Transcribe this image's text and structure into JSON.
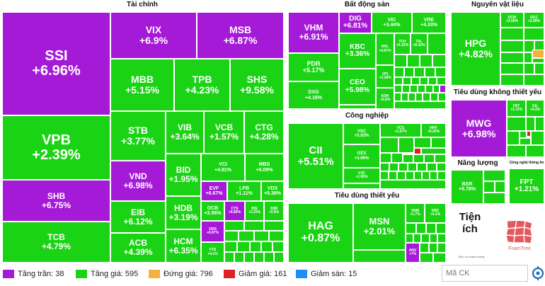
{
  "sectors": {
    "tai_chinh": "Tài chính",
    "bds": "Bất động sản",
    "nvl": "Nguyên vật liệu",
    "tdkty": "Tiêu dùng không thiết yếu",
    "cong_nghiep": "Công nghiệp",
    "nang_luong": "Năng lượng",
    "cntt": "Công nghệ thông tin",
    "tdty": "Tiêu dùng thiết yếu"
  },
  "tiles": {
    "ssi": {
      "code": "SSI",
      "pct": "+6.96%"
    },
    "vpb": {
      "code": "VPB",
      "pct": "+2.39%"
    },
    "shb": {
      "code": "SHB",
      "pct": "+6.75%"
    },
    "tcb": {
      "code": "TCB",
      "pct": "+4.79%"
    },
    "vix": {
      "code": "VIX",
      "pct": "+6.9%"
    },
    "msb": {
      "code": "MSB",
      "pct": "+6.87%"
    },
    "mbb": {
      "code": "MBB",
      "pct": "+5.15%"
    },
    "tpb": {
      "code": "TPB",
      "pct": "+4.23%"
    },
    "shs": {
      "code": "SHS",
      "pct": "+9.58%"
    },
    "stb": {
      "code": "STB",
      "pct": "+3.77%"
    },
    "vib": {
      "code": "VIB",
      "pct": "+3.64%"
    },
    "vcb": {
      "code": "VCB",
      "pct": "+1.57%"
    },
    "ctg": {
      "code": "CTG",
      "pct": "+4.28%"
    },
    "vnd": {
      "code": "VND",
      "pct": "+6.98%"
    },
    "bid": {
      "code": "BID",
      "pct": "+1.95%"
    },
    "vci": {
      "code": "VCI",
      "pct": "+4.91%"
    },
    "mbs": {
      "code": "MBS",
      "pct": "+9.09%"
    },
    "eib": {
      "code": "EIB",
      "pct": "+6.12%"
    },
    "hdb": {
      "code": "HDB",
      "pct": "+3.19%"
    },
    "evf": {
      "code": "EVF",
      "pct": "+6.67%"
    },
    "lpb": {
      "code": "LPB",
      "pct": "+1.11%"
    },
    "vds": {
      "code": "VDS",
      "pct": "+5.38%"
    },
    "ocb": {
      "code": "OCB",
      "pct": "+2.56%"
    },
    "cts": {
      "code": "CTS",
      "pct": "+6.89%"
    },
    "bsi": {
      "code": "BSI",
      "pct": "+2.33%"
    },
    "ssb": {
      "code": "SSB",
      "pct": "+2.6%"
    },
    "acb": {
      "code": "ACB",
      "pct": "+4.39%"
    },
    "hcm": {
      "code": "HCM",
      "pct": "+6.35%"
    },
    "ors": {
      "code": "ORS",
      "pct": "+6.87%"
    },
    "fts": {
      "code": "FTS",
      "pct": "+4.1%"
    },
    "vhm": {
      "code": "VHM",
      "pct": "+6.91%"
    },
    "dig": {
      "code": "DIG",
      "pct": "+6.81%"
    },
    "vic": {
      "code": "VIC",
      "pct": "+3.44%"
    },
    "vre": {
      "code": "VRE",
      "pct": "+4.33%"
    },
    "pdr": {
      "code": "PDR",
      "pct": "+5.17%"
    },
    "kbc": {
      "code": "KBC",
      "pct": "+3.36%"
    },
    "nvl": {
      "code": "NVL",
      "pct": "+4.67%"
    },
    "tch": {
      "code": "TCH",
      "pct": "+5.16%"
    },
    "tal": {
      "code": "TAL",
      "pct": "+6.42%"
    },
    "dxg": {
      "code": "DXG",
      "pct": "+4.16%"
    },
    "ceo": {
      "code": "CEO",
      "pct": "+5.98%"
    },
    "vpi": {
      "code": "VPI",
      "pct": "+3.18%"
    },
    "kdh": {
      "code": "KDH",
      "pct": "+5.5%"
    },
    "hpg": {
      "code": "HPG",
      "pct": "+4.82%"
    },
    "dcm": {
      "code": "DCM",
      "pct": "+2.08%"
    },
    "dgc": {
      "code": "DGC",
      "pct": "+2.99%"
    },
    "mwg": {
      "code": "MWG",
      "pct": "+6.98%"
    },
    "frt": {
      "code": "FRT",
      "pct": "+3.72%"
    },
    "gil": {
      "code": "GIL",
      "pct": "+4.3%"
    },
    "cii": {
      "code": "CII",
      "pct": "+5.51%"
    },
    "vsc": {
      "code": "VSC",
      "pct": "+5.92%"
    },
    "vcg": {
      "code": "VCG",
      "pct": "+1.67%"
    },
    "hhv": {
      "code": "HHV",
      "pct": "+5.26%"
    },
    "gex": {
      "code": "GEX",
      "pct": "+3.96%"
    },
    "vjc": {
      "code": "VJC",
      "pct": "+1.05%"
    },
    "bsr": {
      "code": "BSR",
      "pct": "+5.78%"
    },
    "fpt": {
      "code": "FPT",
      "pct": "+1.21%"
    },
    "hag": {
      "code": "HAG",
      "pct": "+0.87%"
    },
    "msn": {
      "code": "MSN",
      "pct": "+2.01%"
    },
    "vnm": {
      "code": "VNM",
      "pct": "+1.7%"
    },
    "dbc": {
      "code": "DBC",
      "pct": "+4.1%"
    },
    "anv": {
      "code": "ANV",
      "pct": "+7%"
    }
  },
  "utility": {
    "label": "Tiện ích",
    "brand": "FoamTree",
    "credit": "Dịch vụ truyền thông"
  },
  "legend": {
    "ceil": "Tăng trần: 38",
    "up": "Tăng giá: 595",
    "flat": "Đứng giá: 796",
    "down": "Giảm giá: 161",
    "floor": "Giảm sàn: 15"
  },
  "search": {
    "placeholder": "Mã CK"
  },
  "colors": {
    "ceil": "#a51ad6",
    "up": "#1bd315",
    "flat": "#f5b13d",
    "down": "#e02020",
    "floor": "#1e8ff5"
  }
}
